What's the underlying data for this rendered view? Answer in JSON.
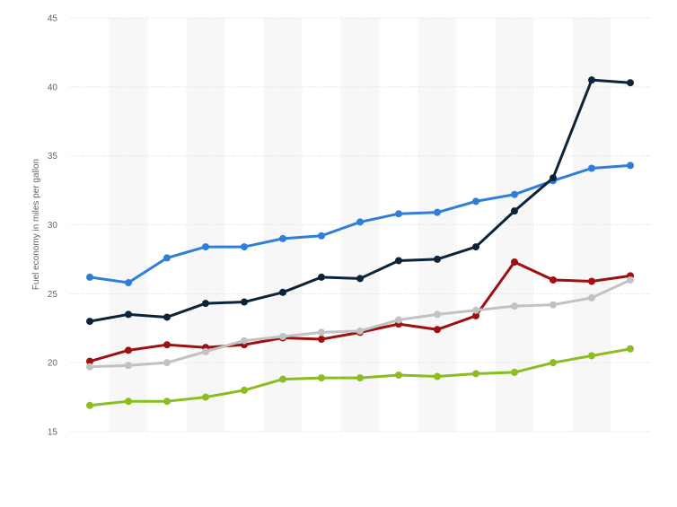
{
  "chart_data": {
    "type": "line",
    "title": "",
    "xlabel": "",
    "ylabel": "Fuel economy in miles per gallon",
    "ylim": [
      15,
      45
    ],
    "yticks": [
      15,
      20,
      25,
      30,
      35,
      40,
      45
    ],
    "x": [
      1,
      2,
      3,
      4,
      5,
      6,
      7,
      8,
      9,
      10,
      11,
      12,
      13,
      14,
      15
    ],
    "grid": true,
    "legend": "none",
    "series": [
      {
        "color": "#2f7ed8",
        "values": [
          26.2,
          25.8,
          27.6,
          28.4,
          28.4,
          29.0,
          29.2,
          30.2,
          30.8,
          30.9,
          31.7,
          32.2,
          33.2,
          34.1,
          34.3
        ]
      },
      {
        "color": "#0d233a",
        "values": [
          23.0,
          23.5,
          23.3,
          24.3,
          24.4,
          25.1,
          26.2,
          26.1,
          27.4,
          27.5,
          28.4,
          31.0,
          33.4,
          40.5,
          40.3
        ]
      },
      {
        "color": "#a00f0f",
        "values": [
          20.1,
          20.9,
          21.3,
          21.1,
          21.3,
          21.8,
          21.7,
          22.2,
          22.8,
          22.4,
          23.4,
          27.3,
          26.0,
          25.9,
          26.3
        ]
      },
      {
        "color": "#c2c2c2",
        "values": [
          19.7,
          19.8,
          20.0,
          20.8,
          21.6,
          21.9,
          22.2,
          22.3,
          23.1,
          23.5,
          23.8,
          24.1,
          24.2,
          24.7,
          26.0
        ]
      },
      {
        "color": "#8bbc21",
        "values": [
          16.9,
          17.2,
          17.2,
          17.5,
          18.0,
          18.8,
          18.9,
          18.9,
          19.1,
          19.0,
          19.2,
          19.3,
          20.0,
          20.5,
          21.0
        ]
      }
    ]
  }
}
